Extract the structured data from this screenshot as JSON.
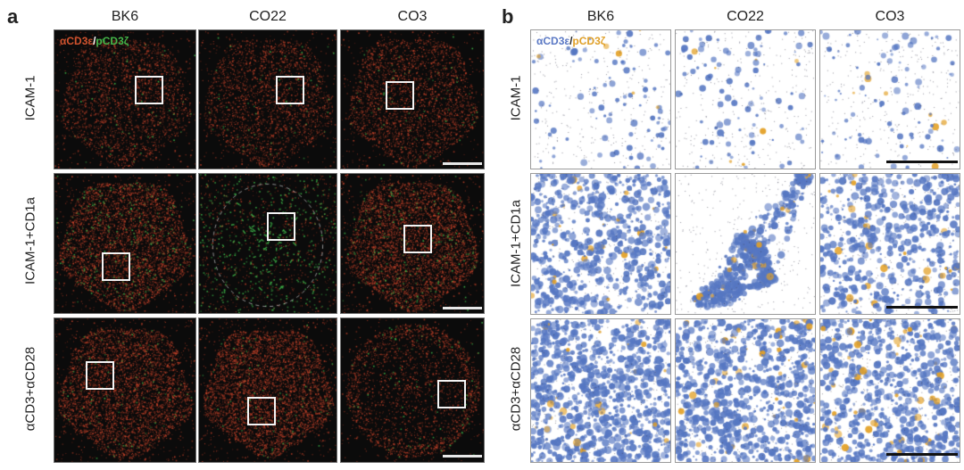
{
  "panel_a": {
    "letter": "a",
    "columns": [
      "BK6",
      "CO22",
      "CO3"
    ],
    "rows": [
      "ICAM-1",
      "ICAM-1+CD1a",
      "αCD3+αCD28"
    ],
    "legend": {
      "part1": "αCD3ε",
      "sep": "/",
      "part2": "pCD3ζ"
    },
    "legend_colors": {
      "part1": "#d0532e",
      "part2": "#45b649"
    },
    "channel_colors": {
      "primary": "#c8432a",
      "secondary": "#3fb84a"
    }
  },
  "panel_b": {
    "letter": "b",
    "columns": [
      "BK6",
      "CO22",
      "CO3"
    ],
    "rows": [
      "ICAM-1",
      "ICAM-1+CD1a",
      "αCD3+αCD28"
    ],
    "legend": {
      "part1": "αCD3ε",
      "sep": "/",
      "part2": "pCD3ζ"
    },
    "legend_colors": {
      "part1": "#5a78c4",
      "part2": "#e0a028"
    },
    "channel_colors": {
      "primary": "#5677c2",
      "secondary": "#e3a127"
    }
  }
}
